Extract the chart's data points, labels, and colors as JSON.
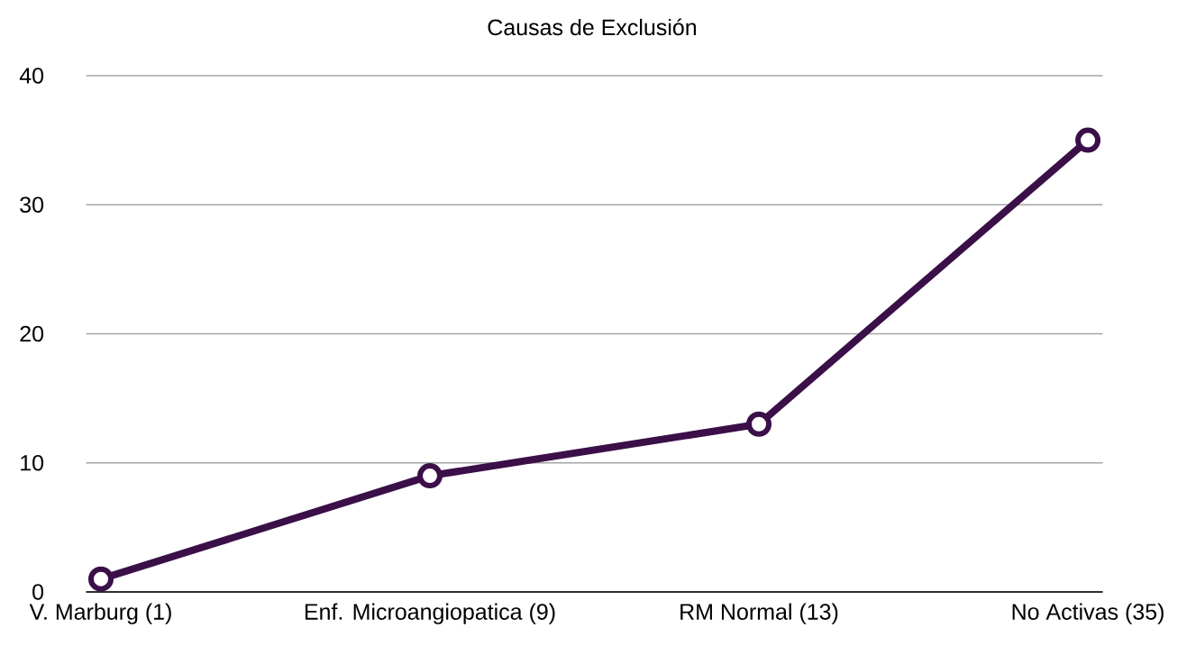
{
  "chart_data": {
    "type": "line",
    "title": "Causas de Exclusión",
    "categories": [
      "V. Marburg (1)",
      "Enf. Microangiopatica (9)",
      "RM Normal (13)",
      "No Activas (35)"
    ],
    "values": [
      1,
      9,
      13,
      35
    ],
    "color": "#3b0f48",
    "ylim": [
      0,
      40
    ],
    "yticks": [
      0,
      10,
      20,
      30,
      40
    ],
    "grid": "y",
    "marker": "circle"
  }
}
